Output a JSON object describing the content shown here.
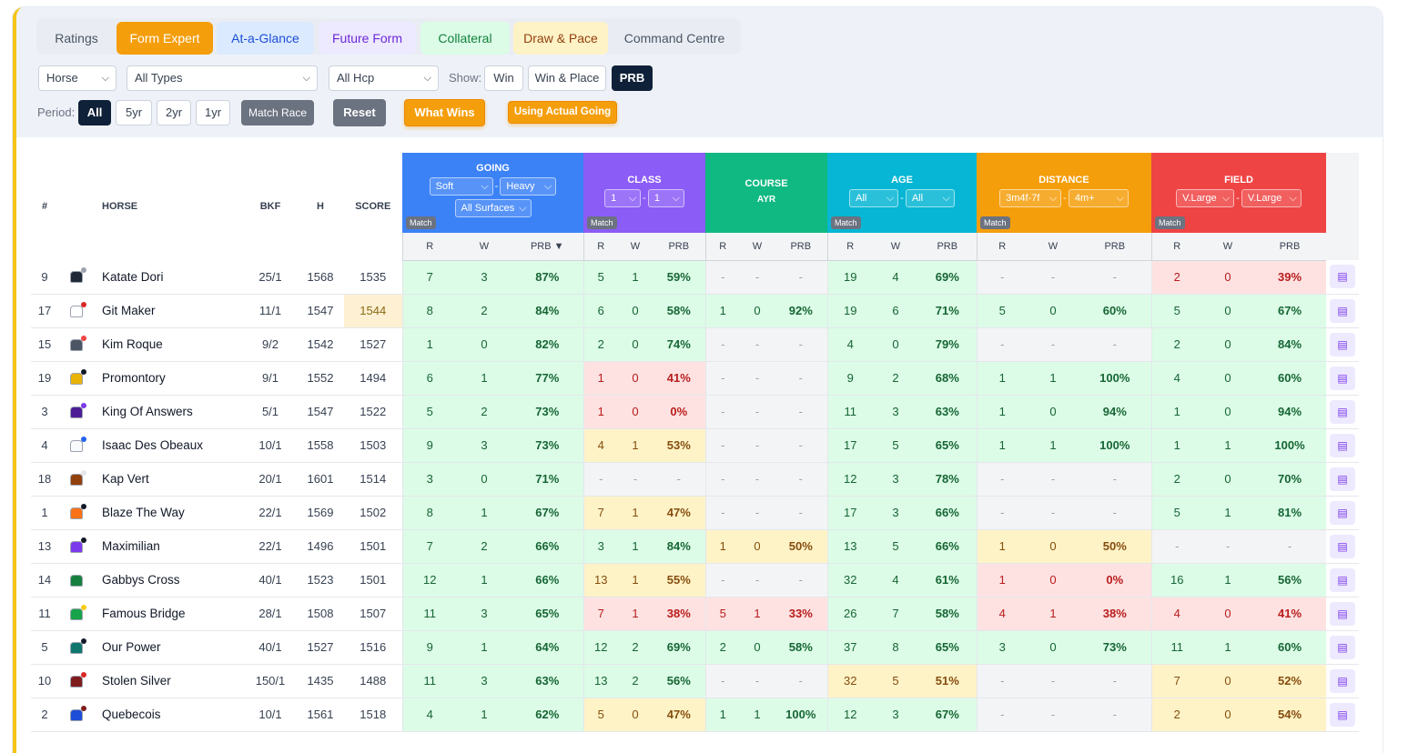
{
  "tabs": [
    {
      "label": "Ratings",
      "bg": "#e9edf3",
      "fg": "#4b5563"
    },
    {
      "label": "Form Expert",
      "bg": "#f59e0b",
      "fg": "#ffffff"
    },
    {
      "label": "At-a-Glance",
      "bg": "#dbeafe",
      "fg": "#1d4ed8"
    },
    {
      "label": "Future Form",
      "bg": "#ede9fe",
      "fg": "#6d28d9"
    },
    {
      "label": "Collateral",
      "bg": "#dcfce7",
      "fg": "#15803d"
    },
    {
      "label": "Draw & Pace",
      "bg": "#fef3c7",
      "fg": "#92400e"
    },
    {
      "label": "Command Centre",
      "bg": "#e9edf3",
      "fg": "#4b5563"
    }
  ],
  "filters": {
    "horse": "Horse",
    "types": "All Types",
    "hcp": "All Hcp",
    "show_label": "Show:",
    "show_options": [
      "Win",
      "Win & Place",
      "PRB"
    ],
    "period_label": "Period:",
    "periods": [
      "All",
      "5yr",
      "2yr",
      "1yr"
    ],
    "match_race": "Match Race",
    "reset": "Reset",
    "what_wins": "What Wins",
    "actual_going": "Using Actual Going"
  },
  "columns": {
    "num": "#",
    "horse": "HORSE",
    "bkf": "BKF",
    "h": "H",
    "score": "SCORE",
    "sub": [
      "R",
      "W",
      "PRB"
    ],
    "prb_sorted": "PRB ▼",
    "match": "Match"
  },
  "groups": {
    "going": {
      "title": "GOING",
      "sel1": "Soft",
      "sel2": "Heavy",
      "sel3": "All Surfaces",
      "color": "#3b82f6"
    },
    "class": {
      "title": "CLASS",
      "sel1": "1",
      "sel2": "1",
      "color": "#8b5cf6"
    },
    "course": {
      "title": "COURSE",
      "sub": "AYR",
      "color": "#10b981"
    },
    "age": {
      "title": "AGE",
      "sel1": "All",
      "sel2": "All",
      "color": "#06b6d4"
    },
    "distance": {
      "title": "DISTANCE",
      "sel1": "3m4f-7f",
      "sel2": "4m+",
      "color": "#f59e0b"
    },
    "field": {
      "title": "FIELD",
      "sel1": "V.Large",
      "sel2": "V.Large",
      "color": "#ef4444"
    }
  },
  "rows": [
    {
      "num": "9",
      "name": "Katate Dori",
      "bkf": "25/1",
      "h": "1568",
      "score": "1535",
      "silk": [
        "#1f2937",
        "#9ca3af"
      ],
      "going": [
        "7",
        "3",
        "87%"
      ],
      "class": [
        "5",
        "1",
        "59%"
      ],
      "course": [
        "-",
        "-",
        "-"
      ],
      "age": [
        "19",
        "4",
        "69%"
      ],
      "distance": [
        "-",
        "-",
        "-"
      ],
      "field": [
        "2",
        "0",
        "39%"
      ],
      "cls": [
        "g",
        "g",
        "n",
        "g",
        "n",
        "r"
      ]
    },
    {
      "num": "17",
      "name": "Git Maker",
      "bkf": "11/1",
      "h": "1547",
      "score": "1544",
      "hl": true,
      "silk": [
        "#ffffff",
        "#dc2626"
      ],
      "going": [
        "8",
        "2",
        "84%"
      ],
      "class": [
        "6",
        "0",
        "58%"
      ],
      "course": [
        "1",
        "0",
        "92%"
      ],
      "age": [
        "19",
        "6",
        "71%"
      ],
      "distance": [
        "5",
        "0",
        "60%"
      ],
      "field": [
        "5",
        "0",
        "67%"
      ],
      "cls": [
        "g",
        "g",
        "g",
        "g",
        "g",
        "g"
      ]
    },
    {
      "num": "15",
      "name": "Kim Roque",
      "bkf": "9/2",
      "h": "1542",
      "score": "1527",
      "silk": [
        "#4b5563",
        "#ef4444"
      ],
      "going": [
        "1",
        "0",
        "82%"
      ],
      "class": [
        "2",
        "0",
        "74%"
      ],
      "course": [
        "-",
        "-",
        "-"
      ],
      "age": [
        "4",
        "0",
        "79%"
      ],
      "distance": [
        "-",
        "-",
        "-"
      ],
      "field": [
        "2",
        "0",
        "84%"
      ],
      "cls": [
        "g",
        "g",
        "n",
        "g",
        "n",
        "g"
      ]
    },
    {
      "num": "19",
      "name": "Promontory",
      "bkf": "9/1",
      "h": "1552",
      "score": "1494",
      "silk": [
        "#eab308",
        "#111827"
      ],
      "going": [
        "6",
        "1",
        "77%"
      ],
      "class": [
        "1",
        "0",
        "41%"
      ],
      "course": [
        "-",
        "-",
        "-"
      ],
      "age": [
        "9",
        "2",
        "68%"
      ],
      "distance": [
        "1",
        "1",
        "100%"
      ],
      "field": [
        "4",
        "0",
        "60%"
      ],
      "cls": [
        "g",
        "r",
        "n",
        "g",
        "g",
        "g"
      ]
    },
    {
      "num": "3",
      "name": "King Of Answers",
      "bkf": "5/1",
      "h": "1547",
      "score": "1522",
      "silk": [
        "#4c1d95",
        "#7c3aed"
      ],
      "going": [
        "5",
        "2",
        "73%"
      ],
      "class": [
        "1",
        "0",
        "0%"
      ],
      "course": [
        "-",
        "-",
        "-"
      ],
      "age": [
        "11",
        "3",
        "63%"
      ],
      "distance": [
        "1",
        "0",
        "94%"
      ],
      "field": [
        "1",
        "0",
        "94%"
      ],
      "cls": [
        "g",
        "r",
        "n",
        "g",
        "g",
        "g"
      ]
    },
    {
      "num": "4",
      "name": "Isaac Des Obeaux",
      "bkf": "10/1",
      "h": "1558",
      "score": "1503",
      "silk": [
        "#f9fafb",
        "#2563eb"
      ],
      "going": [
        "9",
        "3",
        "73%"
      ],
      "class": [
        "4",
        "1",
        "53%"
      ],
      "course": [
        "-",
        "-",
        "-"
      ],
      "age": [
        "17",
        "5",
        "65%"
      ],
      "distance": [
        "1",
        "1",
        "100%"
      ],
      "field": [
        "1",
        "1",
        "100%"
      ],
      "cls": [
        "g",
        "y",
        "n",
        "g",
        "g",
        "g"
      ]
    },
    {
      "num": "18",
      "name": "Kap Vert",
      "bkf": "20/1",
      "h": "1601",
      "score": "1514",
      "silk": [
        "#92400e",
        "#e5e7eb"
      ],
      "going": [
        "3",
        "0",
        "71%"
      ],
      "class": [
        "-",
        "-",
        "-"
      ],
      "course": [
        "-",
        "-",
        "-"
      ],
      "age": [
        "12",
        "3",
        "78%"
      ],
      "distance": [
        "-",
        "-",
        "-"
      ],
      "field": [
        "2",
        "0",
        "70%"
      ],
      "cls": [
        "g",
        "n",
        "n",
        "g",
        "n",
        "g"
      ]
    },
    {
      "num": "1",
      "name": "Blaze The Way",
      "bkf": "22/1",
      "h": "1569",
      "score": "1502",
      "silk": [
        "#f97316",
        "#111827"
      ],
      "going": [
        "8",
        "1",
        "67%"
      ],
      "class": [
        "7",
        "1",
        "47%"
      ],
      "course": [
        "-",
        "-",
        "-"
      ],
      "age": [
        "17",
        "3",
        "66%"
      ],
      "distance": [
        "-",
        "-",
        "-"
      ],
      "field": [
        "5",
        "1",
        "81%"
      ],
      "cls": [
        "g",
        "y",
        "n",
        "g",
        "n",
        "g"
      ]
    },
    {
      "num": "13",
      "name": "Maximilian",
      "bkf": "22/1",
      "h": "1496",
      "score": "1501",
      "silk": [
        "#7c3aed",
        "#111827"
      ],
      "going": [
        "7",
        "2",
        "66%"
      ],
      "class": [
        "3",
        "1",
        "84%"
      ],
      "course": [
        "1",
        "0",
        "50%"
      ],
      "age": [
        "13",
        "5",
        "66%"
      ],
      "distance": [
        "1",
        "0",
        "50%"
      ],
      "field": [
        "-",
        "-",
        "-"
      ],
      "cls": [
        "g",
        "g",
        "y",
        "g",
        "y",
        "n"
      ]
    },
    {
      "num": "14",
      "name": "Gabbys Cross",
      "bkf": "40/1",
      "h": "1523",
      "score": "1501",
      "silk": [
        "#15803d",
        "#ffffff"
      ],
      "going": [
        "12",
        "1",
        "66%"
      ],
      "class": [
        "13",
        "1",
        "55%"
      ],
      "course": [
        "-",
        "-",
        "-"
      ],
      "age": [
        "32",
        "4",
        "61%"
      ],
      "distance": [
        "1",
        "0",
        "0%"
      ],
      "field": [
        "16",
        "1",
        "56%"
      ],
      "cls": [
        "g",
        "y",
        "n",
        "g",
        "r",
        "g"
      ]
    },
    {
      "num": "11",
      "name": "Famous Bridge",
      "bkf": "28/1",
      "h": "1508",
      "score": "1507",
      "silk": [
        "#16a34a",
        "#facc15"
      ],
      "going": [
        "11",
        "3",
        "65%"
      ],
      "class": [
        "7",
        "1",
        "38%"
      ],
      "course": [
        "5",
        "1",
        "33%"
      ],
      "age": [
        "26",
        "7",
        "58%"
      ],
      "distance": [
        "4",
        "1",
        "38%"
      ],
      "field": [
        "4",
        "0",
        "41%"
      ],
      "cls": [
        "g",
        "r",
        "r",
        "g",
        "r",
        "r"
      ]
    },
    {
      "num": "5",
      "name": "Our Power",
      "bkf": "40/1",
      "h": "1527",
      "score": "1516",
      "silk": [
        "#0f766e",
        "#111827"
      ],
      "going": [
        "9",
        "1",
        "64%"
      ],
      "class": [
        "12",
        "2",
        "69%"
      ],
      "course": [
        "2",
        "0",
        "58%"
      ],
      "age": [
        "37",
        "8",
        "65%"
      ],
      "distance": [
        "3",
        "0",
        "73%"
      ],
      "field": [
        "11",
        "1",
        "60%"
      ],
      "cls": [
        "g",
        "g",
        "g",
        "g",
        "g",
        "g"
      ]
    },
    {
      "num": "10",
      "name": "Stolen Silver",
      "bkf": "150/1",
      "h": "1435",
      "score": "1488",
      "silk": [
        "#7f1d1d",
        "#dc2626"
      ],
      "going": [
        "11",
        "3",
        "63%"
      ],
      "class": [
        "13",
        "2",
        "56%"
      ],
      "course": [
        "-",
        "-",
        "-"
      ],
      "age": [
        "32",
        "5",
        "51%"
      ],
      "distance": [
        "-",
        "-",
        "-"
      ],
      "field": [
        "7",
        "0",
        "52%"
      ],
      "cls": [
        "g",
        "g",
        "n",
        "y",
        "n",
        "y"
      ]
    },
    {
      "num": "2",
      "name": "Quebecois",
      "bkf": "10/1",
      "h": "1561",
      "score": "1518",
      "silk": [
        "#1d4ed8",
        "#7f1d1d"
      ],
      "going": [
        "4",
        "1",
        "62%"
      ],
      "class": [
        "5",
        "0",
        "47%"
      ],
      "course": [
        "1",
        "1",
        "100%"
      ],
      "age": [
        "12",
        "3",
        "67%"
      ],
      "distance": [
        "-",
        "-",
        "-"
      ],
      "field": [
        "2",
        "0",
        "54%"
      ],
      "cls": [
        "g",
        "y",
        "g",
        "g",
        "n",
        "y"
      ]
    }
  ]
}
